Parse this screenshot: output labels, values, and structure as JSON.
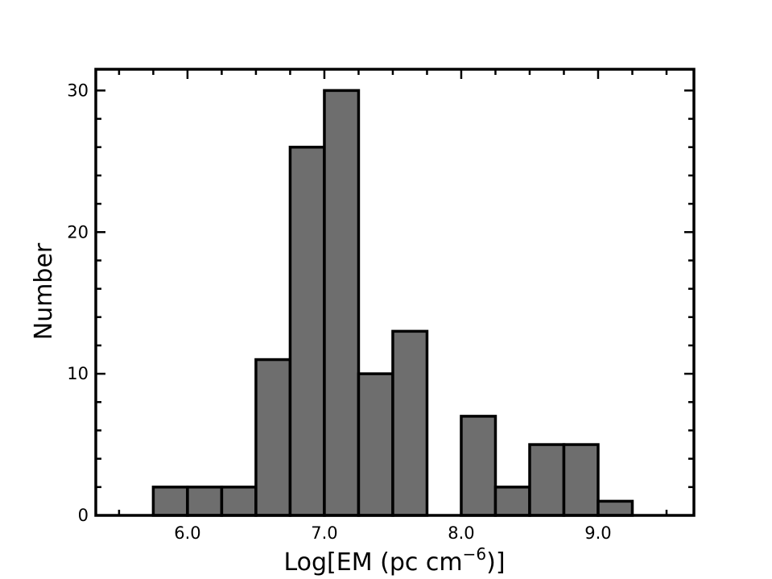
{
  "chart_data": {
    "type": "bar",
    "title": "",
    "xlabel": "Log[EM (pc cm",
    "xlabel_sup": "−6",
    "xlabel_end": ")]",
    "ylabel": "Number",
    "xlim": [
      5.33,
      9.7
    ],
    "ylim": [
      0,
      31.5
    ],
    "bin_width": 0.25,
    "bins": [
      {
        "x0": 5.75,
        "value": 2
      },
      {
        "x0": 6.0,
        "value": 2
      },
      {
        "x0": 6.25,
        "value": 2
      },
      {
        "x0": 6.5,
        "value": 11
      },
      {
        "x0": 6.75,
        "value": 26
      },
      {
        "x0": 7.0,
        "value": 30
      },
      {
        "x0": 7.25,
        "value": 10
      },
      {
        "x0": 7.5,
        "value": 13
      },
      {
        "x0": 7.75,
        "value": 0
      },
      {
        "x0": 8.0,
        "value": 7
      },
      {
        "x0": 8.25,
        "value": 2
      },
      {
        "x0": 8.5,
        "value": 5
      },
      {
        "x0": 8.75,
        "value": 5
      },
      {
        "x0": 9.0,
        "value": 1
      }
    ],
    "x_ticks": [
      {
        "value": 6.0,
        "label": "6.0"
      },
      {
        "value": 7.0,
        "label": "7.0"
      },
      {
        "value": 8.0,
        "label": "8.0"
      },
      {
        "value": 9.0,
        "label": "9.0"
      }
    ],
    "y_ticks": [
      {
        "value": 0,
        "label": "0"
      },
      {
        "value": 10,
        "label": "10"
      },
      {
        "value": 20,
        "label": "20"
      },
      {
        "value": 30,
        "label": "30"
      }
    ],
    "x_minor_step": 0.25,
    "y_minor_step": 2,
    "bar_color": "#6e6e6e",
    "edge_color": "#000000",
    "grid": false
  }
}
